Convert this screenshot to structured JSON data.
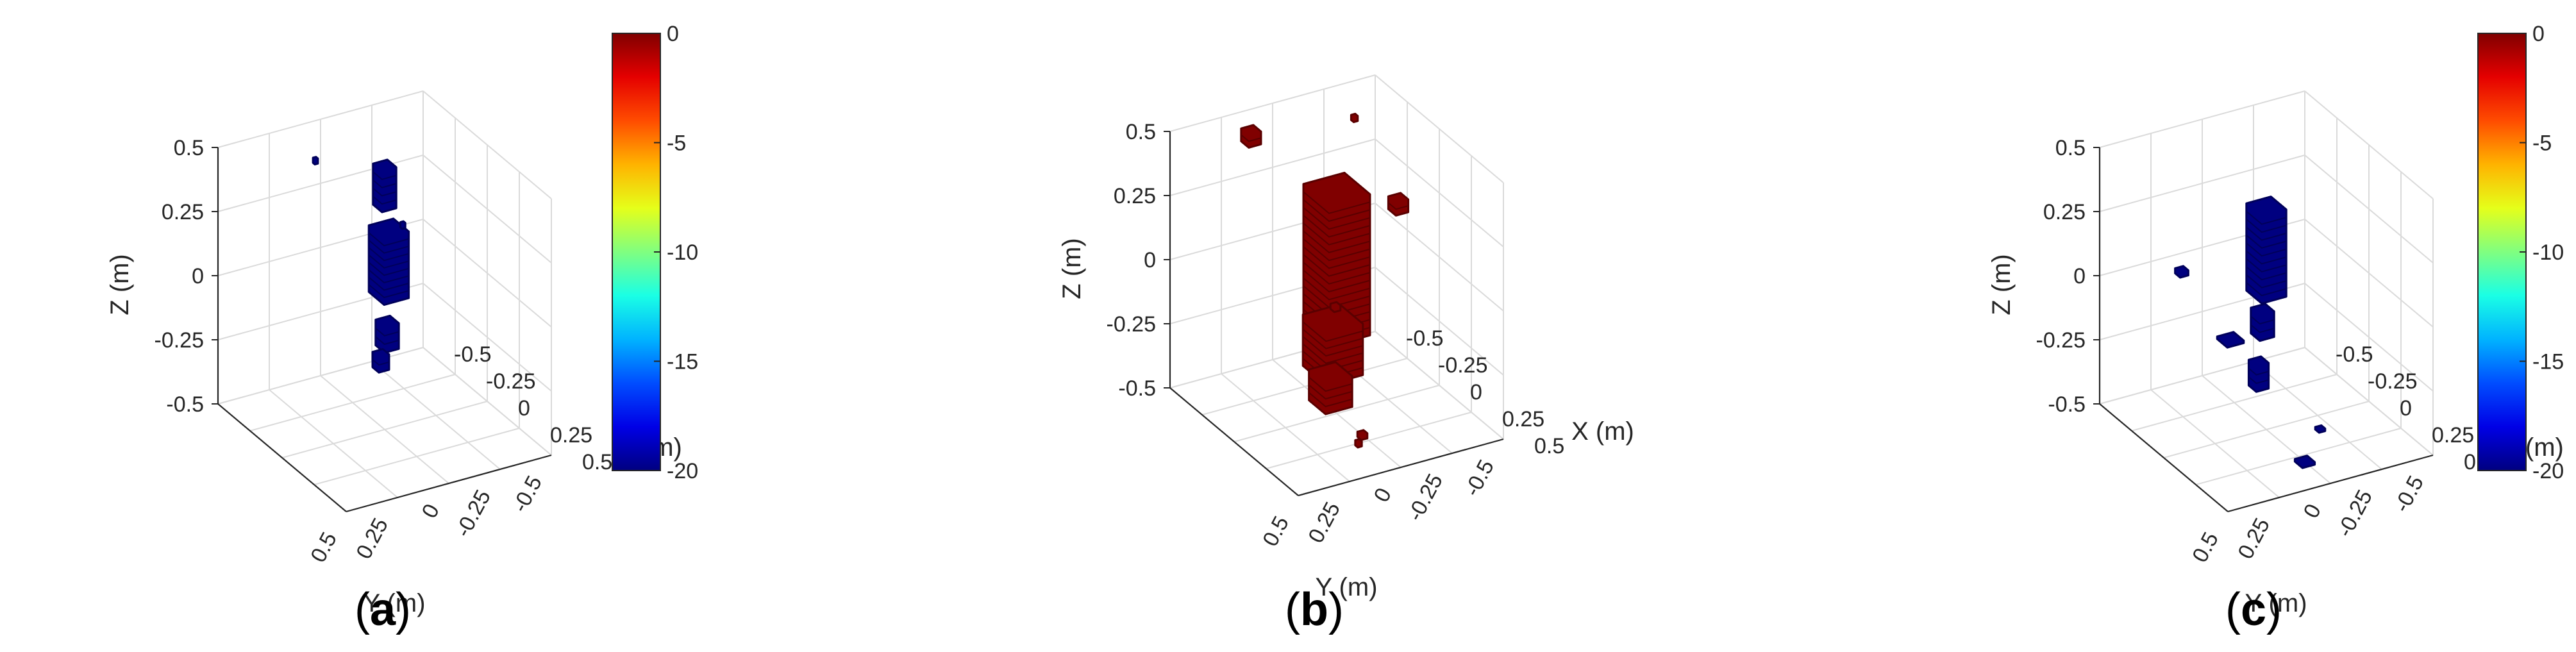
{
  "chart_data": [
    {
      "type": "scatter3d",
      "panel_label": "a",
      "xlabel": "X (m)",
      "ylabel": "Y (m)",
      "zlabel": "Z (m)",
      "xlim": [
        -0.5,
        0.5
      ],
      "ylim": [
        -0.5,
        0.5
      ],
      "zlim": [
        -0.5,
        0.5
      ],
      "xticks": [
        "-0.5",
        "-0.25",
        "0",
        "0.25",
        "0.5"
      ],
      "yticks": [
        "-0.5",
        "-0.25",
        "0",
        "0.25",
        "0.5"
      ],
      "zticks": [
        "-0.5",
        "-0.25",
        "0",
        "0.25",
        "0.5"
      ],
      "grid": true,
      "colormap": "jet",
      "colorbar": {
        "range": [
          -20,
          0
        ],
        "ticks": [
          "0",
          "-5",
          "-10",
          "-15",
          "-20"
        ]
      },
      "clusters": [
        {
          "x": 0.0,
          "y": -0.02,
          "z": 0.15,
          "size": 0.12,
          "height": 0.26,
          "value": -20
        },
        {
          "x": 0.0,
          "y": 0.0,
          "z": 0.45,
          "size": 0.07,
          "height": 0.16,
          "value": -20
        },
        {
          "x": 0.02,
          "y": 0.0,
          "z": -0.12,
          "size": 0.07,
          "height": 0.1,
          "value": -20
        },
        {
          "x": 0.05,
          "y": 0.05,
          "z": -0.2,
          "size": 0.05,
          "height": 0.06,
          "value": -20
        },
        {
          "x": -0.22,
          "y": 0.2,
          "z": 0.5,
          "size": 0.015,
          "height": 0.02,
          "value": -20
        },
        {
          "x": -0.05,
          "y": -0.12,
          "z": 0.25,
          "size": 0.015,
          "height": 0.02,
          "value": -20
        }
      ]
    },
    {
      "type": "scatter3d",
      "panel_label": "b",
      "xlabel": "X (m)",
      "ylabel": "Y (m)",
      "zlabel": "Z (m)",
      "xlim": [
        -0.5,
        0.5
      ],
      "ylim": [
        -0.5,
        0.5
      ],
      "zlim": [
        -0.5,
        0.5
      ],
      "xticks": [
        "-0.5",
        "-0.25",
        "0",
        "0.25",
        "0.5"
      ],
      "yticks": [
        "-0.5",
        "-0.25",
        "0",
        "0.25",
        "0.5"
      ],
      "zticks": [
        "-0.5",
        "-0.25",
        "0",
        "0.25",
        "0.5"
      ],
      "grid": true,
      "colormap": "jet",
      "clusters": [
        {
          "x": 0.0,
          "y": 0.0,
          "z": 0.1,
          "size": 0.2,
          "height": 0.55,
          "value": 0
        },
        {
          "x": 0.05,
          "y": 0.05,
          "z": -0.2,
          "size": 0.18,
          "height": 0.2,
          "value": 0
        },
        {
          "x": 0.08,
          "y": 0.08,
          "z": -0.35,
          "size": 0.13,
          "height": 0.12,
          "value": 0
        },
        {
          "x": -0.22,
          "y": 0.28,
          "z": 0.55,
          "size": 0.06,
          "height": 0.05,
          "value": 0
        },
        {
          "x": 0.0,
          "y": -0.3,
          "z": 0.25,
          "size": 0.06,
          "height": 0.05,
          "value": 0
        },
        {
          "x": -0.15,
          "y": -0.18,
          "z": 0.55,
          "size": 0.02,
          "height": 0.02,
          "value": 0
        },
        {
          "x": 0.15,
          "y": 0.1,
          "z": 0.0,
          "size": 0.03,
          "height": 0.02,
          "value": 0
        },
        {
          "x": 0.2,
          "y": 0.0,
          "z": -0.5,
          "size": 0.03,
          "height": 0.02,
          "value": 0
        },
        {
          "x": 0.25,
          "y": 0.05,
          "z": -0.5,
          "size": 0.02,
          "height": 0.02,
          "value": 0
        }
      ]
    },
    {
      "type": "scatter3d",
      "panel_label": "c",
      "xlabel": "X (m)",
      "ylabel": "Y (m)",
      "zlabel": "Z (m)",
      "xlim": [
        -0.5,
        0.5
      ],
      "ylim": [
        -0.5,
        0.5
      ],
      "zlim": [
        -0.5,
        0.5
      ],
      "xticks": [
        "-0.5",
        "-0.25",
        "0",
        "0.25",
        "0.5"
      ],
      "yticks": [
        "-0.5",
        "-0.25",
        "0",
        "0.25",
        "0.5"
      ],
      "zticks": [
        "-0.5",
        "-0.25",
        "0",
        "0.25",
        "0.5"
      ],
      "grid": true,
      "colormap": "jet",
      "colorbar": {
        "range": [
          -20,
          0
        ],
        "ticks": [
          "0",
          "-5",
          "-10",
          "-15",
          "-20"
        ]
      },
      "clusters": [
        {
          "x": 0.0,
          "y": 0.0,
          "z": 0.2,
          "size": 0.12,
          "height": 0.34,
          "value": -20
        },
        {
          "x": 0.05,
          "y": 0.05,
          "z": -0.05,
          "size": 0.07,
          "height": 0.1,
          "value": -20
        },
        {
          "x": 0.1,
          "y": 0.1,
          "z": -0.22,
          "size": 0.06,
          "height": 0.1,
          "value": -20
        },
        {
          "x": -0.1,
          "y": 0.35,
          "z": 0.15,
          "size": 0.04,
          "height": 0.02,
          "value": -20
        },
        {
          "x": 0.2,
          "y": 0.3,
          "z": 0.0,
          "size": 0.08,
          "height": 0.01,
          "value": -20
        },
        {
          "x": 0.3,
          "y": 0.0,
          "z": -0.5,
          "size": 0.06,
          "height": 0.01,
          "value": -20
        },
        {
          "x": 0.1,
          "y": -0.2,
          "z": -0.5,
          "size": 0.03,
          "height": 0.01,
          "value": -20
        }
      ]
    }
  ]
}
